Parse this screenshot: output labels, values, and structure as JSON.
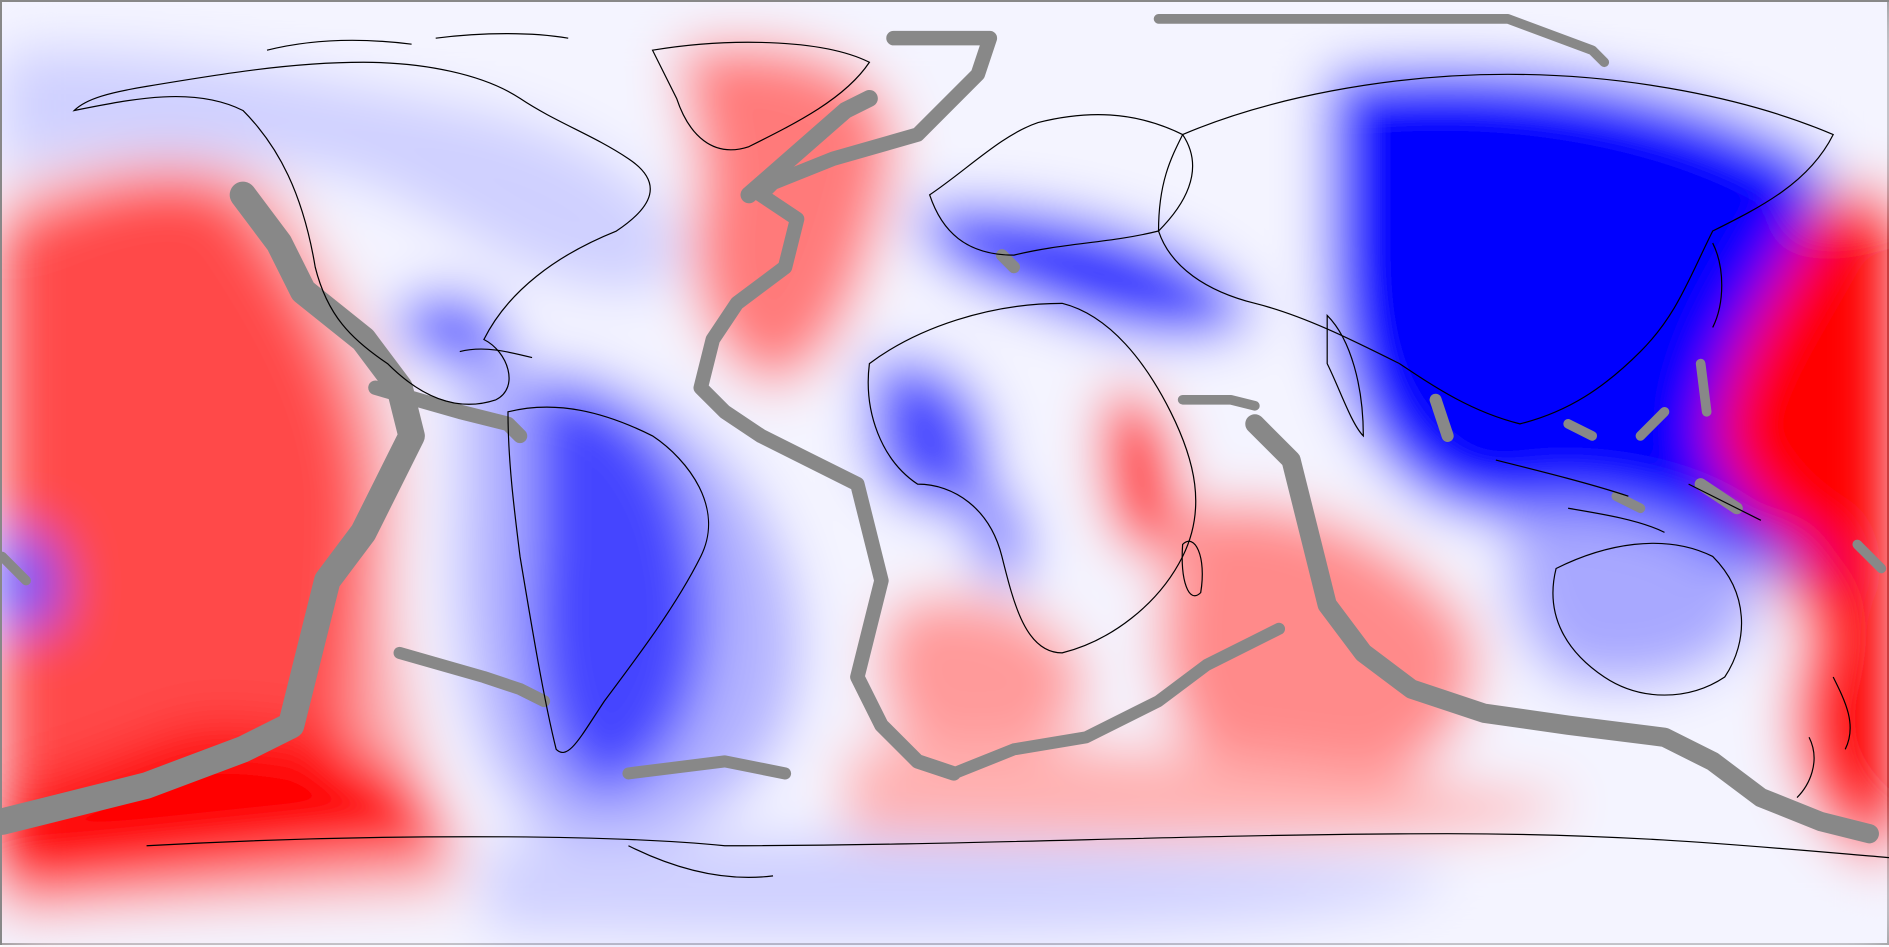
{
  "map": {
    "projection": "equirectangular",
    "colors": {
      "strong_positive": "#ff0000",
      "moderate_positive": "#ff7a7a",
      "weak_positive": "#ffd0d0",
      "neutral": "#f4f4ff",
      "weak_negative": "#cfd0ff",
      "moderate_negative": "#7c7cff",
      "strong_negative": "#0000ff",
      "plate_boundary": "#888888",
      "coastline": "#000000"
    },
    "features": [
      "coastlines",
      "plate-boundaries",
      "velocity-anomaly-field"
    ]
  }
}
